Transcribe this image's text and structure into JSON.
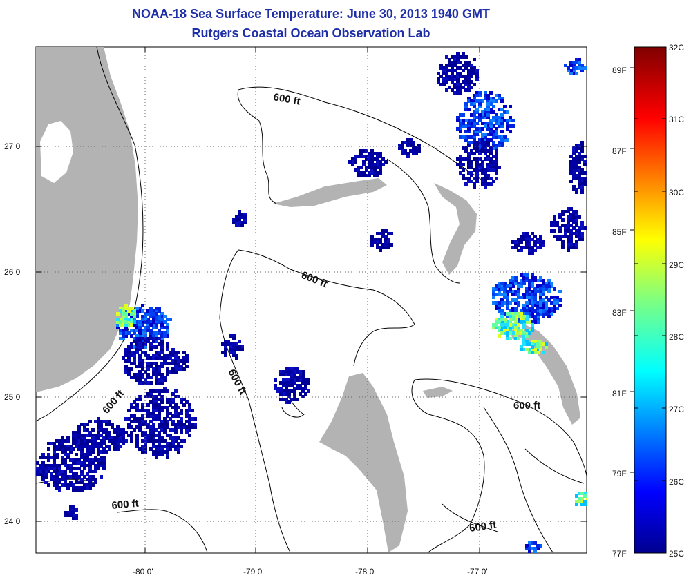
{
  "header": {
    "title": "NOAA-18 Sea Surface Temperature:  June 30, 2013 1940 GMT",
    "subtitle": "Rutgers Coastal Ocean Observation Lab"
  },
  "axes": {
    "lat_ticks": [
      "27 0'",
      "26 0'",
      "25 0'",
      "24 0'"
    ],
    "lon_ticks": [
      "-80 0'",
      "-79 0'",
      "-78 0'",
      "-77 0'"
    ]
  },
  "contours": {
    "labels": [
      "600 ft",
      "600 ft",
      "600 ft",
      "600 ft",
      "600 ft",
      "600 ft"
    ]
  },
  "colorbar": {
    "celsius": [
      "32C",
      "31C",
      "30C",
      "29C",
      "28C",
      "27C",
      "26C",
      "25C"
    ],
    "fahrenheit": [
      "89F",
      "87F",
      "85F",
      "83F",
      "81F",
      "79F",
      "77F"
    ]
  },
  "colors": {
    "land": "#b3b3b3",
    "title": "#1f2fa8",
    "sst_low": "#00008f",
    "sst_high": "#800000"
  }
}
